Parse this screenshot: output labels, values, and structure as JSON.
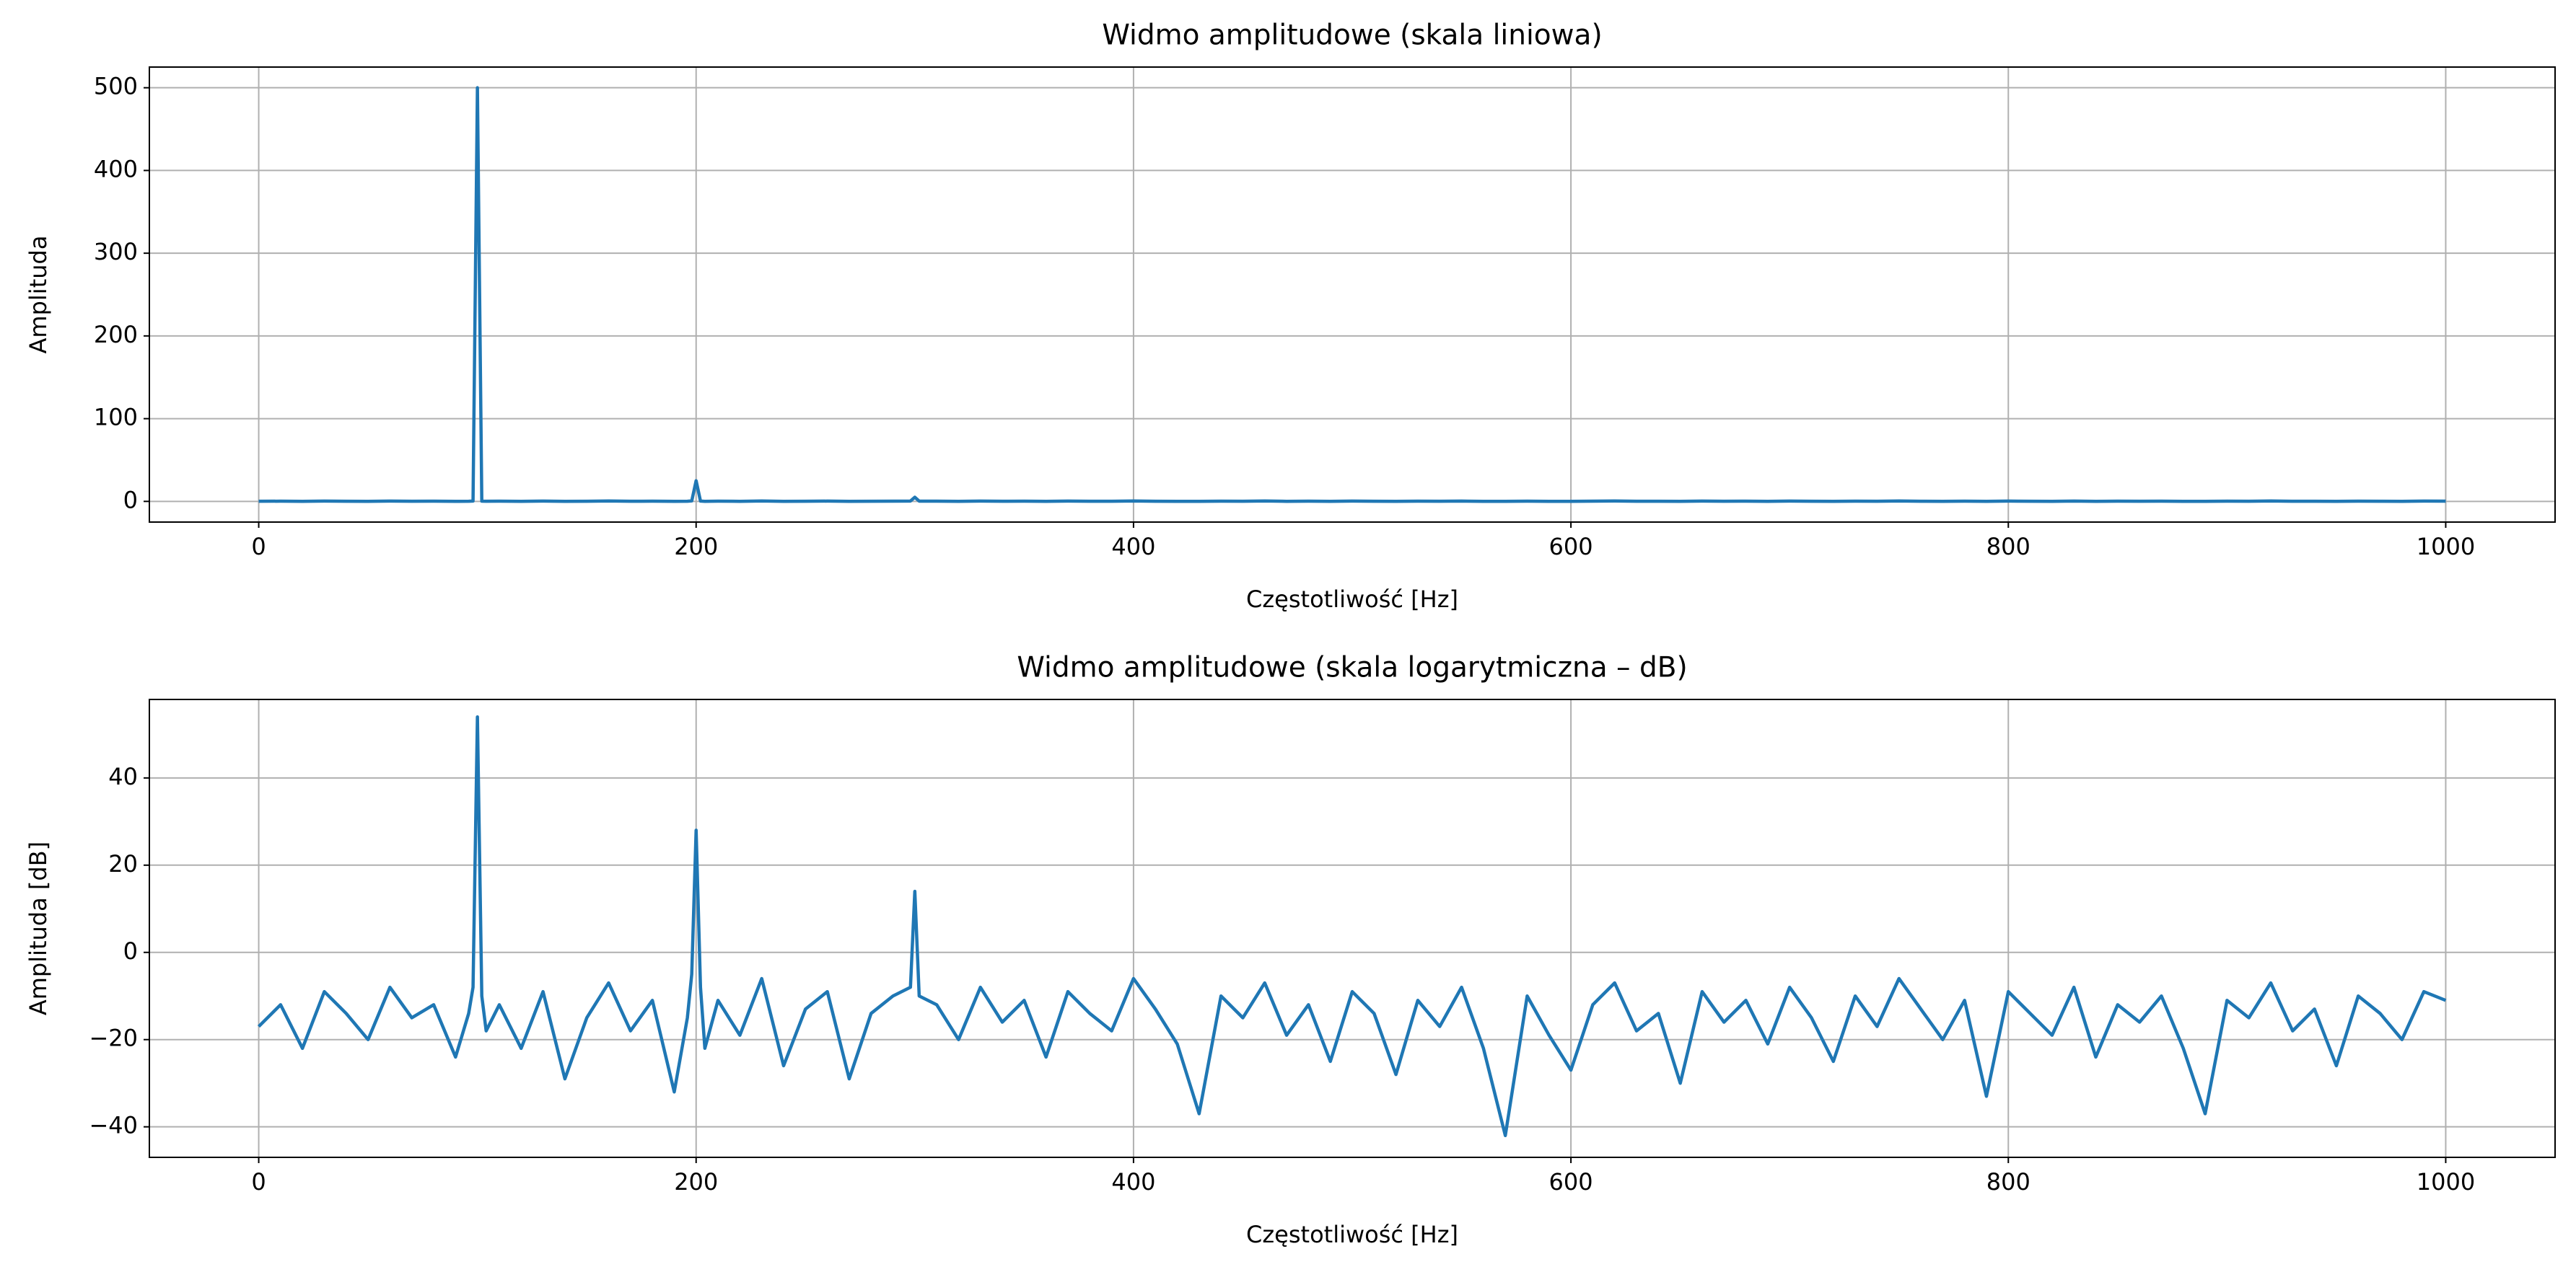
{
  "chart_data": [
    {
      "type": "line",
      "title": "Widmo amplitudowe (skala liniowa)",
      "xlabel": "Częstotliwość [Hz]",
      "ylabel": "Amplituda",
      "x": [
        0,
        10,
        20,
        30,
        40,
        50,
        60,
        70,
        80,
        90,
        96,
        98,
        100,
        102,
        104,
        110,
        120,
        130,
        140,
        150,
        160,
        170,
        180,
        190,
        196,
        198,
        200,
        202,
        204,
        210,
        220,
        230,
        240,
        250,
        260,
        270,
        280,
        290,
        298,
        300,
        302,
        310,
        320,
        330,
        340,
        350,
        360,
        370,
        380,
        390,
        400,
        410,
        420,
        430,
        440,
        450,
        460,
        470,
        480,
        490,
        500,
        510,
        520,
        530,
        540,
        550,
        560,
        570,
        580,
        590,
        600,
        610,
        620,
        630,
        640,
        650,
        660,
        670,
        680,
        690,
        700,
        710,
        720,
        730,
        740,
        750,
        760,
        770,
        780,
        790,
        800,
        810,
        820,
        830,
        840,
        850,
        860,
        870,
        880,
        890,
        900,
        910,
        920,
        930,
        940,
        950,
        960,
        970,
        980,
        990,
        1000
      ],
      "values": [
        0.14,
        0.25,
        0.08,
        0.35,
        0.2,
        0.1,
        0.4,
        0.18,
        0.25,
        0.06,
        0.2,
        0.4,
        500,
        0.32,
        0.13,
        0.25,
        0.08,
        0.35,
        0.04,
        0.18,
        0.45,
        0.13,
        0.28,
        0.03,
        0.18,
        0.56,
        25,
        0.4,
        0.08,
        0.28,
        0.11,
        0.5,
        0.05,
        0.22,
        0.35,
        0.04,
        0.2,
        0.32,
        0.4,
        5,
        0.32,
        0.25,
        0.1,
        0.4,
        0.16,
        0.28,
        0.06,
        0.35,
        0.2,
        0.13,
        0.5,
        0.22,
        0.09,
        0.01,
        0.32,
        0.18,
        0.45,
        0.11,
        0.25,
        0.06,
        0.35,
        0.2,
        0.04,
        0.28,
        0.14,
        0.4,
        0.08,
        0.01,
        0.32,
        0.11,
        0.04,
        0.25,
        0.45,
        0.13,
        0.2,
        0.03,
        0.35,
        0.16,
        0.28,
        0.09,
        0.4,
        0.18,
        0.06,
        0.32,
        0.14,
        0.5,
        0.22,
        0.1,
        0.28,
        0.02,
        0.35,
        0.2,
        0.11,
        0.4,
        0.06,
        0.25,
        0.16,
        0.32,
        0.08,
        0.01,
        0.28,
        0.18,
        0.45,
        0.13,
        0.22,
        0.05,
        0.32,
        0.2,
        0.1,
        0.35,
        0.28
      ],
      "color": "#1f77b4",
      "grid": true,
      "xlim": [
        -50,
        1050
      ],
      "xticks": [
        0,
        200,
        400,
        600,
        800,
        1000
      ],
      "ylim": [
        -25,
        525
      ],
      "yticks": [
        0,
        100,
        200,
        300,
        400,
        500
      ]
    },
    {
      "type": "line",
      "title": "Widmo amplitudowe (skala logarytmiczna – dB)",
      "xlabel": "Częstotliwość [Hz]",
      "ylabel": "Amplituda [dB]",
      "x": [
        0,
        10,
        20,
        30,
        40,
        50,
        60,
        70,
        80,
        90,
        96,
        98,
        100,
        102,
        104,
        110,
        120,
        130,
        140,
        150,
        160,
        170,
        180,
        190,
        196,
        198,
        200,
        202,
        204,
        210,
        220,
        230,
        240,
        250,
        260,
        270,
        280,
        290,
        298,
        300,
        302,
        310,
        320,
        330,
        340,
        350,
        360,
        370,
        380,
        390,
        400,
        410,
        420,
        430,
        440,
        450,
        460,
        470,
        480,
        490,
        500,
        510,
        520,
        530,
        540,
        550,
        560,
        570,
        580,
        590,
        600,
        610,
        620,
        630,
        640,
        650,
        660,
        670,
        680,
        690,
        700,
        710,
        720,
        730,
        740,
        750,
        760,
        770,
        780,
        790,
        800,
        810,
        820,
        830,
        840,
        850,
        860,
        870,
        880,
        890,
        900,
        910,
        920,
        930,
        940,
        950,
        960,
        970,
        980,
        990,
        1000
      ],
      "values": [
        -17,
        -12,
        -22,
        -9,
        -14,
        -20,
        -8,
        -15,
        -12,
        -24,
        -14,
        -8,
        54,
        -10,
        -18,
        -12,
        -22,
        -9,
        -29,
        -15,
        -7,
        -18,
        -11,
        -32,
        -15,
        -5,
        28,
        -8,
        -22,
        -11,
        -19,
        -6,
        -26,
        -13,
        -9,
        -29,
        -14,
        -10,
        -8,
        14,
        -10,
        -12,
        -20,
        -8,
        -16,
        -11,
        -24,
        -9,
        -14,
        -18,
        -6,
        -13,
        -21,
        -37,
        -10,
        -15,
        -7,
        -19,
        -12,
        -25,
        -9,
        -14,
        -28,
        -11,
        -17,
        -8,
        -22,
        -42,
        -10,
        -19,
        -27,
        -12,
        -7,
        -18,
        -14,
        -30,
        -9,
        -16,
        -11,
        -21,
        -8,
        -15,
        -25,
        -10,
        -17,
        -6,
        -13,
        -20,
        -11,
        -33,
        -9,
        -14,
        -19,
        -8,
        -24,
        -12,
        -16,
        -10,
        -22,
        -37,
        -11,
        -15,
        -7,
        -18,
        -13,
        -26,
        -10,
        -14,
        -20,
        -9,
        -11
      ],
      "color": "#1f77b4",
      "grid": true,
      "xlim": [
        -50,
        1050
      ],
      "xticks": [
        0,
        200,
        400,
        600,
        800,
        1000
      ],
      "ylim": [
        -47,
        58
      ],
      "yticks": [
        {
          "value": -40,
          "label": "−40"
        },
        {
          "value": -20,
          "label": "−20"
        },
        0,
        20,
        40
      ]
    }
  ]
}
